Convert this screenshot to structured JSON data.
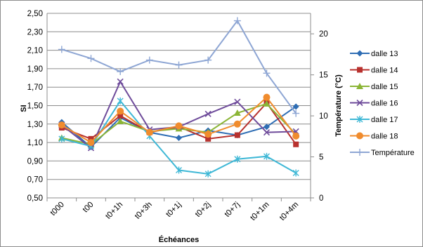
{
  "chart_data": {
    "type": "line",
    "categories": [
      "t000",
      "t00",
      "t0+1h",
      "t0+3h",
      "t0+1j",
      "t0+2j",
      "t0+7j",
      "t0+1m",
      "t0+4m"
    ],
    "xlabel": "Échéances",
    "ylabel": "SI",
    "y2label": "Température (°C)",
    "ylim": [
      0.5,
      2.5
    ],
    "yticks": [
      "0,50",
      "0,70",
      "0,90",
      "1,10",
      "1,30",
      "1,50",
      "1,70",
      "1,90",
      "2,10",
      "2,30",
      "2,50"
    ],
    "y2lim": [
      0,
      22.5
    ],
    "y2ticks": [
      "0",
      "5",
      "10",
      "15",
      "20"
    ],
    "grid": true,
    "legend_position": "right",
    "series": [
      {
        "name": "dalle 13",
        "color": "#2e6db4",
        "marker": "diamond",
        "axis": "left",
        "values": [
          1.32,
          1.05,
          1.37,
          1.21,
          1.15,
          1.23,
          1.18,
          1.27,
          1.49
        ]
      },
      {
        "name": "dalle 14",
        "color": "#b8312e",
        "marker": "square",
        "axis": "left",
        "values": [
          1.26,
          1.14,
          1.39,
          1.21,
          1.27,
          1.14,
          1.18,
          1.53,
          1.08
        ]
      },
      {
        "name": "dalle 15",
        "color": "#8bb536",
        "marker": "triangle",
        "axis": "left",
        "values": [
          1.15,
          1.08,
          1.33,
          1.22,
          1.25,
          1.21,
          1.42,
          1.52,
          1.19
        ]
      },
      {
        "name": "dalle 16",
        "color": "#6f4c9b",
        "marker": "x",
        "axis": "left",
        "values": [
          1.29,
          1.04,
          1.76,
          1.24,
          1.27,
          1.41,
          1.54,
          1.21,
          1.22
        ]
      },
      {
        "name": "dalle 17",
        "color": "#3fb8d6",
        "marker": "star",
        "axis": "left",
        "values": [
          1.14,
          1.06,
          1.55,
          1.17,
          0.8,
          0.76,
          0.92,
          0.95,
          0.77
        ]
      },
      {
        "name": "dalle 18",
        "color": "#f08c2e",
        "marker": "circle",
        "axis": "left",
        "values": [
          1.29,
          1.1,
          1.44,
          1.21,
          1.28,
          1.19,
          1.3,
          1.59,
          1.17
        ]
      },
      {
        "name": "Température",
        "color": "#8ea6d4",
        "marker": "plus",
        "axis": "right",
        "values": [
          18.1,
          17.0,
          15.4,
          16.8,
          16.2,
          16.8,
          21.6,
          15.2,
          10.3
        ]
      }
    ]
  }
}
